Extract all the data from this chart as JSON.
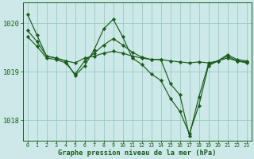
{
  "background_color": "#cce8e8",
  "plot_bg_color": "#cce8e8",
  "grid_color": "#99ccbb",
  "line_color": "#1a5c1a",
  "marker_color": "#1a5c1a",
  "xlabel": "Graphe pression niveau de la mer (hPa)",
  "ylim": [
    1017.58,
    1020.42
  ],
  "xlim": [
    -0.5,
    23.5
  ],
  "yticks": [
    1018,
    1019,
    1020
  ],
  "xticks": [
    0,
    1,
    2,
    3,
    4,
    5,
    6,
    7,
    8,
    9,
    10,
    11,
    12,
    13,
    14,
    15,
    16,
    17,
    18,
    19,
    20,
    21,
    22,
    23
  ],
  "series": [
    [
      1019.85,
      1019.62,
      1019.32,
      1019.28,
      1019.22,
      1019.18,
      1019.28,
      1019.32,
      1019.38,
      1019.42,
      1019.38,
      1019.32,
      1019.28,
      1019.25,
      1019.25,
      1019.22,
      1019.2,
      1019.18,
      1019.2,
      1019.18,
      1019.22,
      1019.28,
      1019.22,
      1019.2
    ],
    [
      1020.18,
      1019.75,
      1019.32,
      1019.28,
      1019.22,
      1018.92,
      1019.12,
      1019.45,
      1019.88,
      1020.08,
      1019.72,
      1019.28,
      1019.15,
      1018.95,
      1018.82,
      1018.45,
      1018.18,
      1017.72,
      1018.3,
      1019.12,
      1019.22,
      1019.35,
      1019.25,
      1019.22
    ],
    [
      1019.72,
      1019.52,
      1019.28,
      1019.25,
      1019.18,
      1018.95,
      1019.22,
      1019.38,
      1019.55,
      1019.68,
      1019.55,
      1019.4,
      1019.3,
      1019.25,
      1019.25,
      1018.75,
      1018.52,
      1017.68,
      1018.48,
      1019.15,
      1019.22,
      1019.32,
      1019.22,
      1019.18
    ]
  ]
}
